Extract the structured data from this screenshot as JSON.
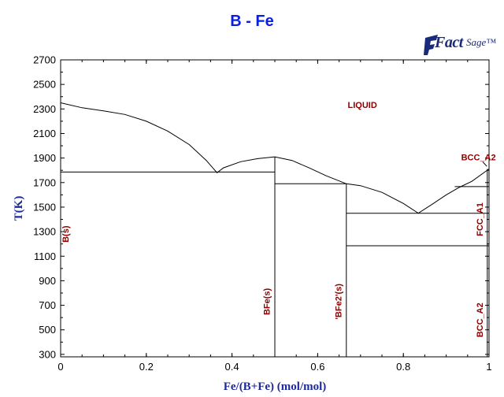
{
  "title": "B - Fe",
  "logo": {
    "brand": "FactSage",
    "main": "Fact",
    "sub": "Sage™"
  },
  "chart_data": {
    "type": "line",
    "title": "B - Fe",
    "xlabel": "Fe/(B+Fe) (mol/mol)",
    "ylabel": "T(K)",
    "xlim": [
      0,
      1
    ],
    "ylim": [
      280,
      2700
    ],
    "x_ticks": [
      0,
      0.2,
      0.4,
      0.6,
      0.8,
      1
    ],
    "x_tick_labels": [
      "0",
      "0.2",
      "0.4",
      "0.6",
      "0.8",
      "1"
    ],
    "y_ticks": [
      300,
      500,
      700,
      900,
      1100,
      1300,
      1500,
      1700,
      1900,
      2100,
      2300,
      2500,
      2700
    ],
    "grid": false,
    "liquidus": [
      [
        0.0,
        2350
      ],
      [
        0.05,
        2310
      ],
      [
        0.1,
        2285
      ],
      [
        0.15,
        2255
      ],
      [
        0.2,
        2200
      ],
      [
        0.25,
        2120
      ],
      [
        0.3,
        2010
      ],
      [
        0.34,
        1880
      ],
      [
        0.365,
        1780
      ],
      [
        0.38,
        1820
      ],
      [
        0.42,
        1870
      ],
      [
        0.46,
        1895
      ],
      [
        0.5,
        1910
      ],
      [
        0.54,
        1880
      ],
      [
        0.58,
        1820
      ],
      [
        0.62,
        1755
      ],
      [
        0.667,
        1690
      ],
      [
        0.7,
        1675
      ],
      [
        0.75,
        1620
      ],
      [
        0.8,
        1530
      ],
      [
        0.835,
        1450
      ],
      [
        0.87,
        1530
      ],
      [
        0.9,
        1600
      ],
      [
        0.93,
        1660
      ],
      [
        0.96,
        1710
      ],
      [
        1.0,
        1811
      ]
    ],
    "lines": [
      {
        "name": "B(s)-BFe(s) eutectic",
        "points": [
          [
            0,
            1786
          ],
          [
            0.5,
            1786
          ]
        ]
      },
      {
        "name": "BFe(s) line",
        "points": [
          [
            0.5,
            280
          ],
          [
            0.5,
            1910
          ]
        ]
      },
      {
        "name": "BFe(s)-BFe2(s) peritectic",
        "points": [
          [
            0.5,
            1690
          ],
          [
            0.667,
            1690
          ]
        ]
      },
      {
        "name": "BFe2(s) line",
        "points": [
          [
            0.667,
            280
          ],
          [
            0.667,
            1690
          ]
        ]
      },
      {
        "name": "eutectic",
        "points": [
          [
            0.667,
            1450
          ],
          [
            1.0,
            1450
          ]
        ]
      },
      {
        "name": "FCC/BCC",
        "points": [
          [
            0.667,
            1185
          ],
          [
            1.0,
            1185
          ]
        ]
      },
      {
        "name": "BCC_A2/FCC",
        "points": [
          [
            0.92,
            1667
          ],
          [
            1.0,
            1667
          ]
        ]
      },
      {
        "name": "right edge",
        "points": [
          [
            0.996,
            280
          ],
          [
            0.996,
            1811
          ]
        ]
      }
    ],
    "annotations": [
      {
        "text": "LIQUID",
        "x": 0.67,
        "y": 2310,
        "rotate": 0
      },
      {
        "text": "BCC_A2",
        "x": 0.935,
        "y": 1880,
        "rotate": 0
      },
      {
        "text": "B(s)",
        "x": 0.018,
        "y": 1280,
        "rotate": -90
      },
      {
        "text": "BFe(s)",
        "x": 0.488,
        "y": 730,
        "rotate": -90
      },
      {
        "text": "'BFe2'(s)",
        "x": 0.655,
        "y": 730,
        "rotate": -90
      },
      {
        "text": "FCC_A1",
        "x": 0.985,
        "y": 1400,
        "rotate": -90
      },
      {
        "text": "BCC_A2",
        "x": 0.985,
        "y": 580,
        "rotate": -90
      }
    ],
    "pointer": {
      "from": [
        0.985,
        1870
      ],
      "to": [
        0.995,
        1832
      ]
    }
  }
}
